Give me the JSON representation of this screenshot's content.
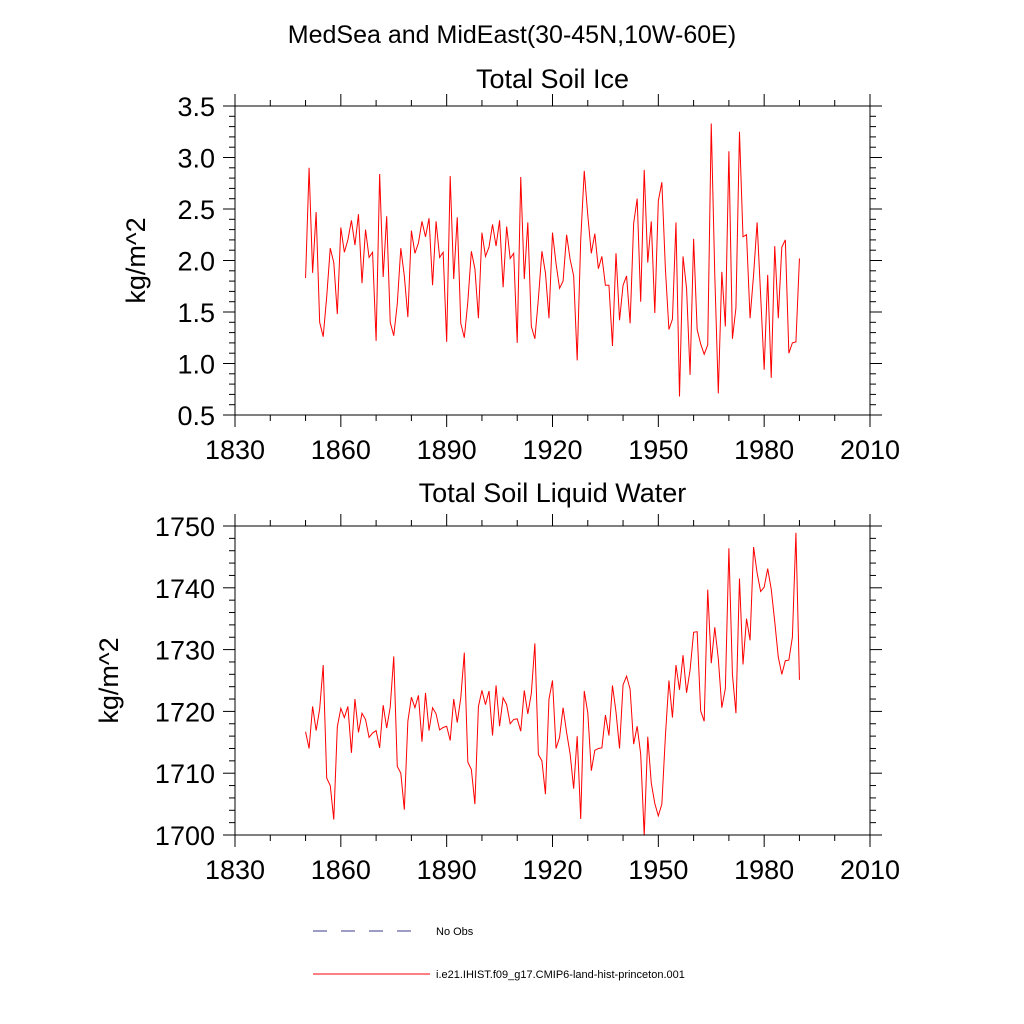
{
  "figure": {
    "title": "MedSea and MidEast(30-45N,10W-60E)"
  },
  "chart_data": [
    {
      "type": "line",
      "title": "Total Soil Ice",
      "xlabel": "",
      "ylabel": "kg/m^2",
      "xlim": [
        1830,
        2010
      ],
      "ylim": [
        0.5,
        3.5
      ],
      "xticks": [
        1830,
        1860,
        1890,
        1920,
        1950,
        1980,
        2010
      ],
      "yticks": [
        "0.5",
        "1.0",
        "1.5",
        "2.0",
        "2.5",
        "3.0",
        "3.5"
      ],
      "grid": false,
      "series": [
        {
          "name": "i.e21.IHIST.f09_g17.CMIP6-land-hist-princeton.001",
          "color": "#ff0000",
          "x_start": 1850,
          "values": [
            1.83,
            2.9,
            1.88,
            2.47,
            1.4,
            1.26,
            1.65,
            2.12,
            1.98,
            1.48,
            2.32,
            2.08,
            2.2,
            2.39,
            2.15,
            2.45,
            1.78,
            2.3,
            2.03,
            2.08,
            1.22,
            2.84,
            1.84,
            2.43,
            1.4,
            1.27,
            1.58,
            2.12,
            1.85,
            1.45,
            2.29,
            2.07,
            2.17,
            2.38,
            2.23,
            2.41,
            1.76,
            2.38,
            2.03,
            2.08,
            1.21,
            2.82,
            1.82,
            2.42,
            1.39,
            1.25,
            1.6,
            2.09,
            1.92,
            1.44,
            2.27,
            2.04,
            2.13,
            2.35,
            2.14,
            2.39,
            1.74,
            2.33,
            2.02,
            2.07,
            1.2,
            2.81,
            1.82,
            2.37,
            1.36,
            1.24,
            1.63,
            2.09,
            1.88,
            1.44,
            2.27,
            1.97,
            1.73,
            1.8,
            2.25,
            2.01,
            1.85,
            1.03,
            2.2,
            2.87,
            2.44,
            2.07,
            2.26,
            1.92,
            2.04,
            1.76,
            1.76,
            1.17,
            2.07,
            1.42,
            1.76,
            1.85,
            1.39,
            2.36,
            2.6,
            1.6,
            2.88,
            1.98,
            2.38,
            1.49,
            2.58,
            2.76,
            1.92,
            1.33,
            1.43,
            2.37,
            0.68,
            2.04,
            1.73,
            0.89,
            2.21,
            1.33,
            1.19,
            1.09,
            1.18,
            3.33,
            1.86,
            0.71,
            1.89,
            1.36,
            3.06,
            1.24,
            1.54,
            3.25,
            2.23,
            2.25,
            1.44,
            1.86,
            2.37,
            1.66,
            0.94,
            1.86,
            0.86,
            2.14,
            1.44,
            2.13,
            2.2,
            1.1,
            1.2,
            1.21,
            2.02
          ]
        }
      ]
    },
    {
      "type": "line",
      "title": "Total Soil Liquid Water",
      "xlabel": "",
      "ylabel": "kg/m^2",
      "xlim": [
        1830,
        2010
      ],
      "ylim": [
        1700,
        1750
      ],
      "xticks": [
        1830,
        1860,
        1890,
        1920,
        1950,
        1980,
        2010
      ],
      "yticks": [
        "1700",
        "1710",
        "1720",
        "1730",
        "1740",
        "1750"
      ],
      "grid": false,
      "series": [
        {
          "name": "i.e21.IHIST.f09_g17.CMIP6-land-hist-princeton.001",
          "color": "#ff0000",
          "x_start": 1850,
          "values": [
            1716.7,
            1714.0,
            1720.8,
            1716.9,
            1720.4,
            1727.5,
            1709.2,
            1708.0,
            1702.5,
            1717.5,
            1720.5,
            1719.0,
            1720.8,
            1713.3,
            1722.0,
            1716.6,
            1719.7,
            1718.7,
            1715.8,
            1716.5,
            1716.9,
            1714.1,
            1721.0,
            1717.3,
            1720.7,
            1728.9,
            1711.1,
            1710.0,
            1704.1,
            1718.4,
            1722.3,
            1720.6,
            1722.6,
            1715.1,
            1723.0,
            1716.9,
            1720.6,
            1719.6,
            1717.0,
            1717.4,
            1717.6,
            1715.3,
            1722.0,
            1718.2,
            1722.2,
            1729.5,
            1711.8,
            1710.6,
            1705.0,
            1720.8,
            1723.4,
            1721.1,
            1723.3,
            1716.1,
            1724.2,
            1717.6,
            1722.2,
            1721.1,
            1718.0,
            1718.7,
            1718.8,
            1716.8,
            1723.4,
            1719.6,
            1722.9,
            1731.0,
            1713.0,
            1712.0,
            1706.6,
            1722.0,
            1725.0,
            1714.0,
            1715.8,
            1720.6,
            1716.6,
            1713.1,
            1707.5,
            1716.0,
            1702.6,
            1723.3,
            1719.8,
            1710.4,
            1713.7,
            1714.0,
            1714.1,
            1719.4,
            1716.1,
            1724.2,
            1719.9,
            1714.0,
            1724.3,
            1725.7,
            1723.6,
            1714.7,
            1717.6,
            1713.1,
            1699.9,
            1715.9,
            1708.4,
            1705.1,
            1703.1,
            1705.0,
            1716.0,
            1725.0,
            1719.0,
            1727.5,
            1723.5,
            1729.1,
            1723.0,
            1726.7,
            1732.8,
            1732.9,
            1720.1,
            1718.4,
            1739.7,
            1727.8,
            1733.6,
            1728.5,
            1720.6,
            1723.7,
            1746.4,
            1726.0,
            1719.7,
            1741.5,
            1727.6,
            1735.0,
            1731.5,
            1746.6,
            1742.4,
            1739.4,
            1740.1,
            1743.1,
            1739.8,
            1734.5,
            1728.8,
            1726.0,
            1728.2,
            1728.3,
            1732.0,
            1748.9,
            1725.1
          ]
        }
      ]
    }
  ],
  "legend": {
    "items": [
      {
        "label": "No Obs",
        "style": "dashed",
        "color": "#3a3a8c"
      },
      {
        "label": "i.e21.IHIST.f09_g17.CMIP6-land-hist-princeton.001",
        "style": "solid",
        "color": "#ff0000"
      }
    ]
  }
}
